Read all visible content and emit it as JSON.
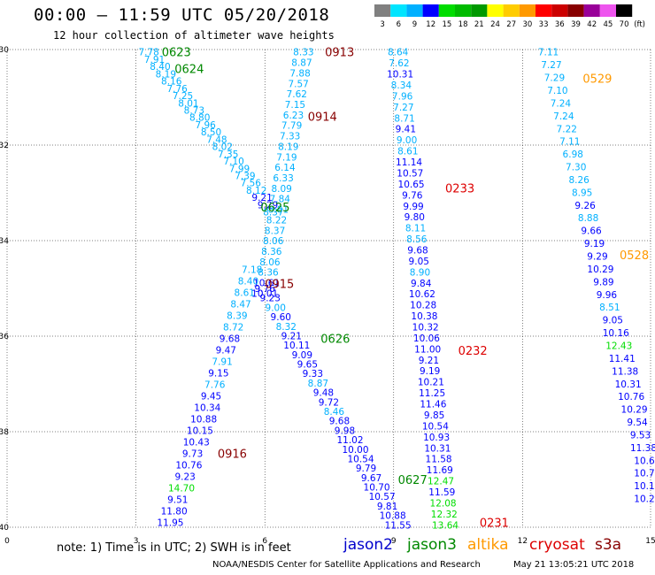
{
  "header": {
    "title": "00:00 – 11:59 UTC 05/20/2018",
    "subtitle": "12 hour collection of altimeter wave heights"
  },
  "footer": {
    "note": "note: 1) Time is in UTC; 2) SWH is in feet",
    "credit": "NOAA/NESDIS Center for Satellite Applications and Research",
    "timestamp": "May 21 13:05:21 UTC 2018",
    "missions": [
      {
        "name": "jason2",
        "color": "#0000cc"
      },
      {
        "name": "jason3",
        "color": "#008800"
      },
      {
        "name": "altika",
        "color": "#ff9900"
      },
      {
        "name": "cryosat",
        "color": "#dd0000"
      },
      {
        "name": "s3a",
        "color": "#880000"
      }
    ]
  },
  "legend": {
    "unit": "(ft)",
    "bins": [
      {
        "label": "3",
        "color": "#808080"
      },
      {
        "label": "6",
        "color": "#00e5ff"
      },
      {
        "label": "9",
        "color": "#00b0ff"
      },
      {
        "label": "12",
        "color": "#0000ff"
      },
      {
        "label": "15",
        "color": "#00dd00"
      },
      {
        "label": "18",
        "color": "#00bb00"
      },
      {
        "label": "21",
        "color": "#009900"
      },
      {
        "label": "24",
        "color": "#ffff00"
      },
      {
        "label": "27",
        "color": "#ffcc00"
      },
      {
        "label": "30",
        "color": "#ff9900"
      },
      {
        "label": "33",
        "color": "#ff0000"
      },
      {
        "label": "36",
        "color": "#cc0000"
      },
      {
        "label": "39",
        "color": "#880000"
      },
      {
        "label": "42",
        "color": "#990099"
      },
      {
        "label": "45",
        "color": "#ee55ee"
      },
      {
        "label": "70",
        "color": "#000000"
      }
    ]
  },
  "chart_data": {
    "type": "scatter",
    "xlim": [
      0,
      15
    ],
    "ylim": [
      -40,
      -30
    ],
    "x_ticks": [
      0,
      3,
      6,
      9,
      12,
      15
    ],
    "y_ticks": [
      -30,
      -32,
      -34,
      -36,
      -38,
      -40
    ],
    "grid": true,
    "tracks": [
      {
        "lon_start": 3.3,
        "lon_end": 6.2,
        "lat_start": -30.05,
        "lat_end": -33.4,
        "mission": "jason3",
        "values": [
          "7.78",
          "7.91",
          "8.40",
          "8.19",
          "8.16",
          "7.76",
          "7.25",
          "8.01",
          "8.73",
          "8.80",
          "7.96",
          "8.50",
          "7.48",
          "8.02",
          "7.35",
          "7.10",
          "7.99",
          "7.39",
          "7.56",
          "8.12",
          "9.21",
          "9.29",
          "8.37"
        ]
      },
      {
        "lon_start": 6.9,
        "lon_end": 6.0,
        "lat_start": -30.05,
        "lat_end": -35.1,
        "mission": "s3a",
        "values": [
          "8.33",
          "8.87",
          "7.88",
          "7.57",
          "7.62",
          "7.15",
          "6.23",
          "7.79",
          "7.33",
          "8.19",
          "7.19",
          "6.14",
          "6.33",
          "8.09",
          "7.84",
          "8.81",
          "8.22",
          "8.37",
          "8.06",
          "8.36",
          "8.06",
          "8.36",
          "10.61",
          "10.01"
        ]
      },
      {
        "lon_start": 5.7,
        "lon_end": 3.8,
        "lat_start": -34.6,
        "lat_end": -39.9,
        "mission": "jason3",
        "values": [
          "7.18",
          "8.40",
          "8.61",
          "8.47",
          "8.39",
          "8.72",
          "9.68",
          "9.47",
          "7.91",
          "9.15",
          "7.76",
          "9.45",
          "10.34",
          "10.88",
          "10.15",
          "10.43",
          "9.73",
          "10.76",
          "9.23",
          "14.70",
          "9.51",
          "11.80",
          "11.95"
        ]
      },
      {
        "lon_start": 6.0,
        "lon_end": 9.1,
        "lat_start": -35.0,
        "lat_end": -39.95,
        "mission": "s3a",
        "values": [
          "9.76",
          "9.23",
          "9.00",
          "9.60",
          "8.32",
          "9.21",
          "10.11",
          "9.09",
          "9.65",
          "9.33",
          "8.87",
          "9.48",
          "9.72",
          "8.46",
          "9.68",
          "9.98",
          "11.02",
          "10.00",
          "10.54",
          "9.79",
          "9.67",
          "10.70",
          "10.57",
          "9.81",
          "10.88",
          "11.55"
        ]
      },
      {
        "lon_start": 9.1,
        "lon_end": 10.2,
        "lat_start": -30.05,
        "lat_end": -39.95,
        "mission": "cryosat",
        "values": [
          "8.64",
          "7.62",
          "10.31",
          "8.34",
          "7.96",
          "7.27",
          "8.71",
          "9.41",
          "9.00",
          "8.61",
          "11.14",
          "10.57",
          "10.65",
          "9.76",
          "9.99",
          "9.80",
          "8.11",
          "8.56",
          "9.68",
          "9.05",
          "8.90",
          "9.84",
          "10.62",
          "10.28",
          "10.38",
          "10.32",
          "10.06",
          "11.00",
          "9.21",
          "9.19",
          "10.21",
          "11.25",
          "11.46",
          "9.85",
          "10.54",
          "10.93",
          "10.31",
          "11.58",
          "11.69",
          "12.47",
          "11.59",
          "12.08",
          "12.32",
          "13.64"
        ]
      },
      {
        "lon_start": 12.6,
        "lon_end": 15.1,
        "lat_start": -30.05,
        "lat_end": -39.4,
        "mission": "altika",
        "values": [
          "7.11",
          "7.27",
          "7.29",
          "7.10",
          "7.24",
          "7.24",
          "7.22",
          "7.11",
          "6.98",
          "7.30",
          "8.26",
          "8.95",
          "9.26",
          "8.88",
          "9.66",
          "9.19",
          "9.29",
          "10.29",
          "9.89",
          "9.96",
          "8.51",
          "9.05",
          "10.16",
          "12.43",
          "11.41",
          "11.38",
          "10.31",
          "10.76",
          "10.29",
          "9.54",
          "9.53",
          "11.38",
          "10.6",
          "10.7",
          "10.1",
          "10.2"
        ]
      }
    ],
    "pass_labels": [
      {
        "label": "0623",
        "lon": 3.6,
        "lat": -30.05,
        "color": "#008800"
      },
      {
        "label": "0624",
        "lon": 3.9,
        "lat": -30.4,
        "color": "#008800"
      },
      {
        "label": "0913",
        "lon": 7.4,
        "lat": -30.05,
        "color": "#880000"
      },
      {
        "label": "0914",
        "lon": 7.0,
        "lat": -31.4,
        "color": "#880000"
      },
      {
        "label": "0529",
        "lon": 13.4,
        "lat": -30.6,
        "color": "#ff9900"
      },
      {
        "label": "0233",
        "lon": 10.2,
        "lat": -32.9,
        "color": "#dd0000"
      },
      {
        "label": "0625",
        "lon": 5.9,
        "lat": -33.3,
        "color": "#008800"
      },
      {
        "label": "0528",
        "lon": 14.4,
        "lat": -34.3,
        "color": "#ff9900"
      },
      {
        "label": "0915",
        "lon": 6.0,
        "lat": -34.9,
        "color": "#880000"
      },
      {
        "label": "0626",
        "lon": 7.3,
        "lat": -36.05,
        "color": "#008800"
      },
      {
        "label": "0232",
        "lon": 10.5,
        "lat": -36.3,
        "color": "#dd0000"
      },
      {
        "label": "0916",
        "lon": 4.9,
        "lat": -38.45,
        "color": "#880000"
      },
      {
        "label": "0627",
        "lon": 9.1,
        "lat": -39.0,
        "color": "#008800"
      },
      {
        "label": "0231",
        "lon": 11.0,
        "lat": -39.9,
        "color": "#dd0000"
      }
    ]
  }
}
